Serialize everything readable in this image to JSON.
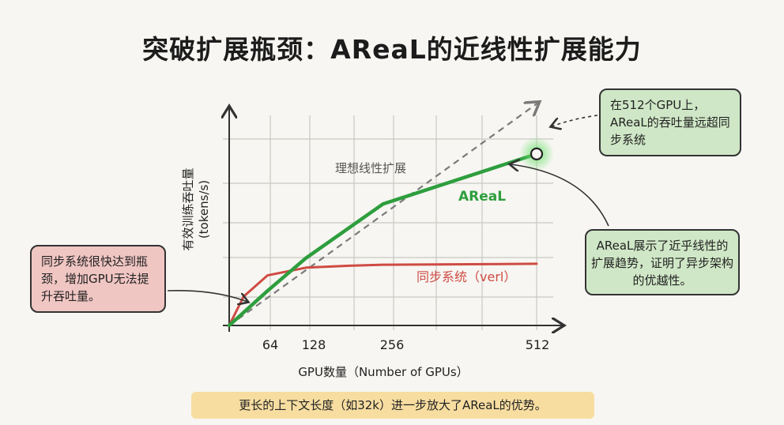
{
  "title": "突破扩展瓶颈：AReaL的近线性扩展能力",
  "chart_data": {
    "type": "line",
    "title": "突破扩展瓶颈：AReaL的近线性扩展能力",
    "xlabel": "GPU数量（Number of GPUs）",
    "ylabel": "有效训练吞吐量 (tokens/s)",
    "ylabel_line1": "有效训练吞吐量",
    "ylabel_line2": "(tokens/s)",
    "x_ticks": [
      "64",
      "128",
      "256",
      "512"
    ],
    "x_tick_values": [
      64,
      128,
      256,
      512
    ],
    "xlim": [
      0,
      512
    ],
    "ylim": [
      0,
      100
    ],
    "grid": true,
    "series": [
      {
        "name": "理想线性扩展",
        "style": "dashed",
        "color": "#7a7a7a",
        "x": [
          0,
          512
        ],
        "y": [
          0,
          100
        ]
      },
      {
        "name": "AReaL",
        "style": "solid",
        "color": "#2e9e3e",
        "x": [
          0,
          64,
          128,
          256,
          512
        ],
        "y": [
          0,
          18,
          35,
          63,
          89
        ]
      },
      {
        "name": "同步系统（verl）",
        "style": "solid",
        "color": "#cf4b43",
        "x": [
          0,
          24,
          64,
          128,
          200,
          256,
          512
        ],
        "y": [
          0,
          15,
          26,
          30,
          31,
          31.5,
          32
        ]
      }
    ]
  },
  "callouts": {
    "top_right": "在512个GPU上，AReaL的吞吐量远超同步系统",
    "right": "AReaL展示了近乎线性的扩展趋势，证明了异步架构的优越性。",
    "left": "同步系统很快达到瓶颈，增加GPU无法提升吞吐量。"
  },
  "footer": "更长的上下文长度（如32k）进一步放大了AReaL的优势。",
  "colors": {
    "areal": "#2e9e3e",
    "sync": "#cf4b43",
    "ideal": "#7a7a7a",
    "green_box": "#cfe7c6",
    "red_box": "#f0c6c3",
    "footer_box": "#f7dda0"
  }
}
